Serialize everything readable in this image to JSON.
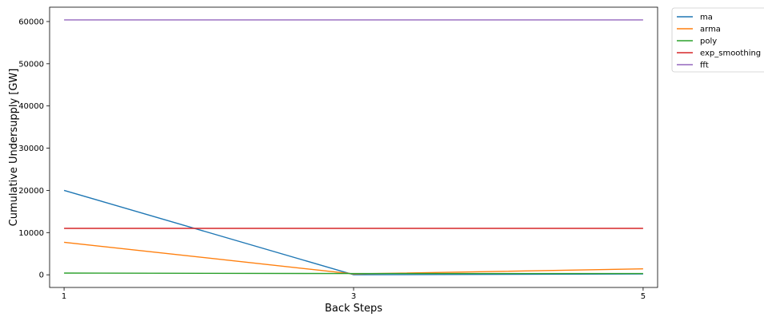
{
  "chart_data": {
    "type": "line",
    "xlabel": "Back Steps",
    "ylabel": "Cumulative Undersupply [GW]",
    "x": [
      1,
      3,
      5
    ],
    "x_ticks": [
      "1",
      "3",
      "5"
    ],
    "xlim": [
      0.9,
      5.1
    ],
    "ylim": [
      -3000,
      63400
    ],
    "y_ticks": [
      "0",
      "10000",
      "20000",
      "30000",
      "40000",
      "50000",
      "60000"
    ],
    "y_tick_values": [
      0,
      10000,
      20000,
      30000,
      40000,
      50000,
      60000
    ],
    "grid": false,
    "legend_position": "outside-top-right",
    "series": [
      {
        "name": "ma",
        "color": "#1f77b4",
        "values": [
          20000,
          0,
          200
        ]
      },
      {
        "name": "arma",
        "color": "#ff7f0e",
        "values": [
          7700,
          200,
          1400
        ]
      },
      {
        "name": "poly",
        "color": "#2ca02c",
        "values": [
          400,
          300,
          300
        ]
      },
      {
        "name": "exp_smoothing",
        "color": "#d62728",
        "values": [
          11000,
          11000,
          11000
        ]
      },
      {
        "name": "fft",
        "color": "#9467bd",
        "values": [
          60400,
          60400,
          60400
        ]
      }
    ]
  }
}
